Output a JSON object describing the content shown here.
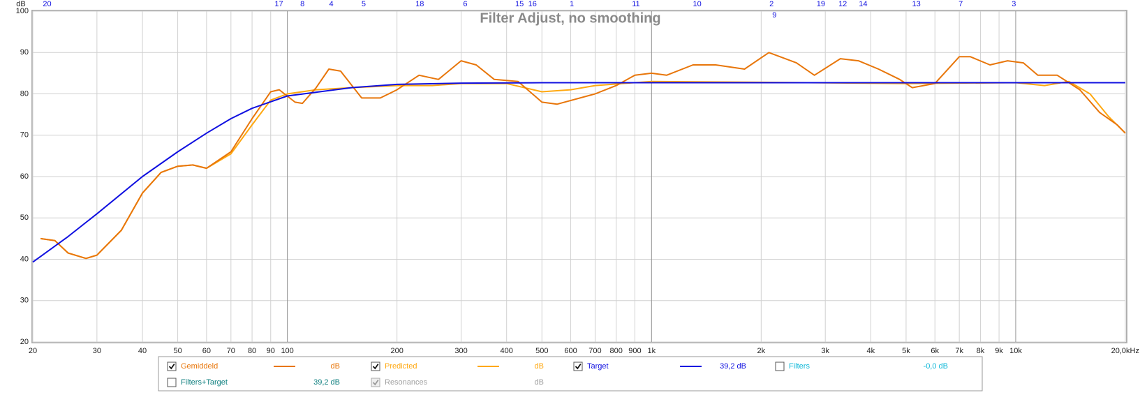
{
  "chart_data": {
    "type": "line",
    "title": "Filter Adjust, no smoothing",
    "y_unit_label": "dB",
    "xscale": "log",
    "grid": true,
    "xlim": [
      20,
      20000
    ],
    "ylim": [
      20,
      100
    ],
    "yticks": [
      20,
      30,
      40,
      50,
      60,
      70,
      80,
      90,
      100
    ],
    "xticks": [
      20,
      30,
      40,
      50,
      60,
      70,
      80,
      90,
      100,
      200,
      300,
      400,
      500,
      600,
      700,
      800,
      900,
      {
        "value": 1000,
        "label": "1k"
      },
      {
        "value": 2000,
        "label": "2k"
      },
      {
        "value": 3000,
        "label": "3k"
      },
      {
        "value": 4000,
        "label": "4k"
      },
      {
        "value": 5000,
        "label": "5k"
      },
      {
        "value": 6000,
        "label": "6k"
      },
      {
        "value": 7000,
        "label": "7k"
      },
      {
        "value": 8000,
        "label": "8k"
      },
      {
        "value": 9000,
        "label": "9k"
      },
      {
        "value": 10000,
        "label": "10k"
      },
      {
        "value": 20000,
        "label": "20,0kHz"
      }
    ],
    "series": [
      {
        "name": "Gemiddeld",
        "color": "#e8760a",
        "checked": true,
        "readout": "dB",
        "x": [
          21,
          23,
          25,
          28,
          30,
          35,
          40,
          45,
          50,
          55,
          60,
          70,
          80,
          90,
          95,
          105,
          110,
          120,
          130,
          140,
          160,
          180,
          200,
          230,
          260,
          300,
          330,
          370,
          430,
          500,
          550,
          700,
          800,
          900,
          1000,
          1100,
          1300,
          1500,
          1800,
          2100,
          2500,
          2800,
          3300,
          3700,
          4200,
          4800,
          5200,
          6000,
          7000,
          7500,
          8500,
          9500,
          10500,
          11500,
          13000,
          15000,
          17000,
          19000,
          20000
        ],
        "values": [
          45,
          44.5,
          41.5,
          40.2,
          41,
          47,
          56,
          61,
          62.5,
          62.8,
          62,
          66,
          74,
          80.5,
          81,
          78,
          77.7,
          81.5,
          86,
          85.5,
          79,
          79,
          81,
          84.5,
          83.5,
          88,
          87,
          83.5,
          83,
          78,
          77.5,
          80,
          82,
          84.5,
          85,
          84.5,
          87,
          87,
          86,
          90,
          87.5,
          84.5,
          88.5,
          88,
          86,
          83.5,
          81.5,
          82.5,
          89,
          89,
          87,
          88,
          87.5,
          84.5,
          84.5,
          81,
          75.5,
          72.5,
          70.5
        ]
      },
      {
        "name": "Predicted",
        "color": "#ffa810",
        "checked": true,
        "readout": "dB",
        "x": [
          21,
          23,
          25,
          28,
          30,
          35,
          40,
          45,
          50,
          55,
          60,
          70,
          80,
          90,
          100,
          120,
          150,
          200,
          250,
          300,
          400,
          500,
          600,
          700,
          1000,
          2000,
          5000,
          10000,
          12000,
          14000,
          16000,
          18000,
          20000
        ],
        "values": [
          45,
          44.5,
          41.5,
          40.2,
          41,
          47,
          56,
          61,
          62.5,
          62.8,
          62,
          65.5,
          72.5,
          78.5,
          80,
          81,
          81.5,
          82,
          82,
          82.5,
          82.5,
          80.5,
          81,
          82,
          83,
          82.8,
          82.5,
          82.7,
          82,
          83,
          80,
          74.5,
          70.5
        ]
      },
      {
        "name": "Target",
        "color": "#1010e0",
        "checked": true,
        "readout": "39,2 dB",
        "x": [
          20,
          25,
          30,
          40,
          50,
          60,
          70,
          80,
          100,
          150,
          200,
          300,
          500,
          1000,
          20000
        ],
        "values": [
          39.3,
          45.5,
          51,
          60,
          66,
          70.5,
          74,
          76.5,
          79.5,
          81.5,
          82.3,
          82.6,
          82.7,
          82.7,
          82.7
        ]
      }
    ],
    "other_traces": [
      {
        "name": "Filters",
        "color": "#10b8d8",
        "checked": false,
        "enabled": true,
        "readout": "-0,0 dB"
      },
      {
        "name": "Filters+Target",
        "color": "#108080",
        "checked": false,
        "enabled": true,
        "readout": "39,2 dB"
      },
      {
        "name": "Resonances",
        "color": "#a0a0a0",
        "checked": true,
        "enabled": false,
        "readout": "dB"
      }
    ],
    "filter_markers": [
      {
        "label": "20",
        "x": 21.9
      },
      {
        "label": "17",
        "x": 94.8
      },
      {
        "label": "8",
        "x": 110
      },
      {
        "label": "4",
        "x": 132
      },
      {
        "label": "5",
        "x": 162
      },
      {
        "label": "18",
        "x": 231
      },
      {
        "label": "6",
        "x": 308
      },
      {
        "label": "15",
        "x": 434
      },
      {
        "label": "16",
        "x": 471
      },
      {
        "label": "1",
        "x": 604
      },
      {
        "label": "11",
        "x": 906
      },
      {
        "label": "10",
        "x": 1334
      },
      {
        "label": "2",
        "x": 2135
      },
      {
        "label": "9",
        "x": 2175
      },
      {
        "label": "19",
        "x": 2917
      },
      {
        "label": "12",
        "x": 3350
      },
      {
        "label": "14",
        "x": 3811
      },
      {
        "label": "13",
        "x": 5335
      },
      {
        "label": "7",
        "x": 7063
      },
      {
        "label": "3",
        "x": 9886
      }
    ]
  }
}
